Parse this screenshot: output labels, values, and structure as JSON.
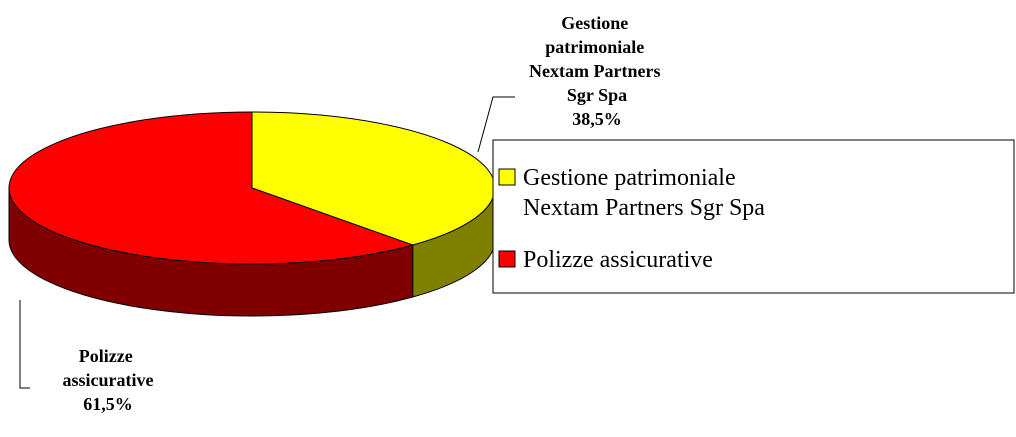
{
  "chart_data": {
    "type": "pie3d",
    "categories": [
      "Gestione patrimoniale Nextam Partners Sgr Spa",
      "Polizze assicurative"
    ],
    "values": [
      38.5,
      61.5
    ],
    "value_labels": [
      "38,5%",
      "61,5%"
    ],
    "colors": [
      "#ffff00",
      "#ff0000"
    ],
    "side_colors": [
      "#808000",
      "#800000"
    ],
    "legend": "right"
  }
}
